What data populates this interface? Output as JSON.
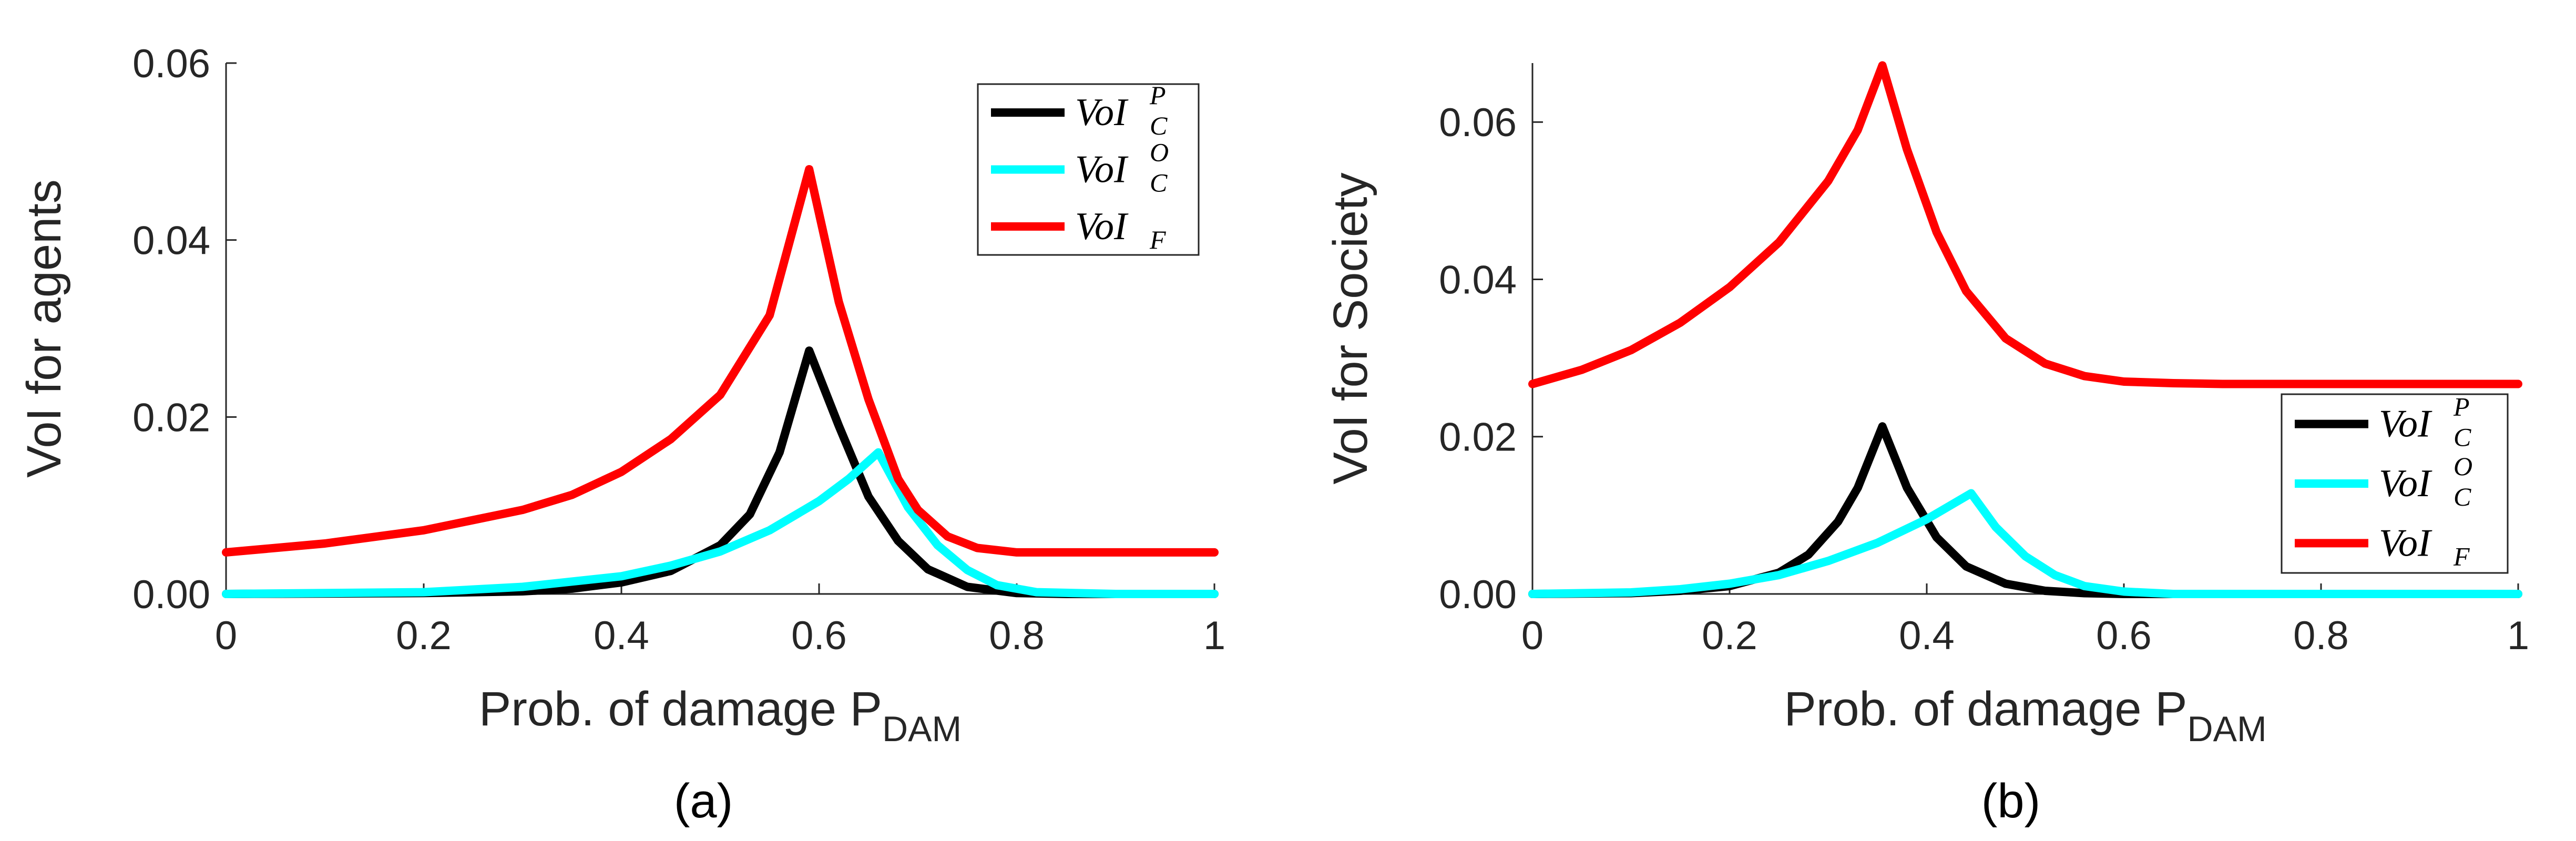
{
  "chart_data": [
    {
      "type": "line",
      "panel_label": "(a)",
      "xlabel": "Prob. of damage P",
      "xlabel_sub": "DAM",
      "ylabel": "VoI for agents",
      "xlim": [
        0,
        1
      ],
      "ylim": [
        0,
        0.06
      ],
      "xticks": [
        "0",
        "0.2",
        "0.4",
        "0.6",
        "0.8",
        "1"
      ],
      "yticks": [
        "0.00",
        "0.02",
        "0.04",
        "0.06"
      ],
      "ytick_values": [
        0,
        0.02,
        0.04,
        0.06
      ],
      "legend_position": "top-right",
      "series": [
        {
          "name": "VoI_C^P",
          "color": "#000000",
          "legend": {
            "main": "VoI",
            "sup": "P",
            "sub": "C"
          },
          "x": [
            0,
            0.2,
            0.3,
            0.35,
            0.4,
            0.45,
            0.5,
            0.53,
            0.56,
            0.59,
            0.62,
            0.65,
            0.68,
            0.71,
            0.75,
            0.8,
            0.85,
            1
          ],
          "y": [
            0,
            0.0001,
            0.0003,
            0.0006,
            0.0013,
            0.0026,
            0.0055,
            0.009,
            0.016,
            0.0275,
            0.019,
            0.011,
            0.006,
            0.0028,
            0.0008,
            0.0001,
            0,
            0
          ]
        },
        {
          "name": "VoI_C^O",
          "color": "#00ffff",
          "legend": {
            "main": "VoI",
            "sup": "O",
            "sub": "C"
          },
          "x": [
            0,
            0.2,
            0.3,
            0.4,
            0.45,
            0.5,
            0.55,
            0.6,
            0.63,
            0.66,
            0.69,
            0.72,
            0.75,
            0.78,
            0.82,
            0.9,
            1
          ],
          "y": [
            0,
            0.0002,
            0.0008,
            0.002,
            0.0032,
            0.0048,
            0.0072,
            0.0105,
            0.013,
            0.016,
            0.0098,
            0.0055,
            0.0027,
            0.001,
            0.0002,
            0,
            0
          ]
        },
        {
          "name": "VoI_F",
          "color": "#ff0000",
          "legend": {
            "main": "VoI",
            "sub": "F"
          },
          "x": [
            0,
            0.1,
            0.2,
            0.3,
            0.35,
            0.4,
            0.45,
            0.5,
            0.55,
            0.59,
            0.62,
            0.65,
            0.68,
            0.7,
            0.73,
            0.76,
            0.8,
            0.85,
            1
          ],
          "y": [
            0.0047,
            0.0057,
            0.0072,
            0.0095,
            0.0112,
            0.0138,
            0.0175,
            0.0225,
            0.0315,
            0.048,
            0.033,
            0.022,
            0.013,
            0.0095,
            0.0065,
            0.0052,
            0.0047,
            0.0047,
            0.0047
          ]
        }
      ]
    },
    {
      "type": "line",
      "panel_label": "(b)",
      "xlabel": "Prob. of damage P",
      "xlabel_sub": "DAM",
      "ylabel": "VoI for Society",
      "xlim": [
        0,
        1
      ],
      "ylim": [
        0,
        0.0675
      ],
      "xticks": [
        "0",
        "0.2",
        "0.4",
        "0.6",
        "0.8",
        "1"
      ],
      "yticks": [
        "0.00",
        "0.02",
        "0.04",
        "0.06"
      ],
      "ytick_values": [
        0,
        0.02,
        0.04,
        0.06
      ],
      "legend_position": "bottom-right",
      "series": [
        {
          "name": "VoI_C^P",
          "color": "#000000",
          "legend": {
            "main": "VoI",
            "sup": "P",
            "sub": "C"
          },
          "x": [
            0,
            0.1,
            0.15,
            0.2,
            0.25,
            0.28,
            0.31,
            0.33,
            0.355,
            0.38,
            0.41,
            0.44,
            0.48,
            0.52,
            0.56,
            0.6,
            1
          ],
          "y": [
            0,
            0.0001,
            0.0004,
            0.001,
            0.0027,
            0.005,
            0.0092,
            0.0135,
            0.0213,
            0.0135,
            0.0072,
            0.0035,
            0.0013,
            0.0004,
            0.0001,
            0,
            0
          ]
        },
        {
          "name": "VoI_C^O",
          "color": "#00ffff",
          "legend": {
            "main": "VoI",
            "sup": "O",
            "sub": "C"
          },
          "x": [
            0,
            0.1,
            0.15,
            0.2,
            0.25,
            0.3,
            0.35,
            0.4,
            0.445,
            0.47,
            0.5,
            0.53,
            0.56,
            0.6,
            0.65,
            1
          ],
          "y": [
            0,
            0.0002,
            0.0006,
            0.0013,
            0.0024,
            0.0042,
            0.0065,
            0.0095,
            0.0128,
            0.0085,
            0.0048,
            0.0024,
            0.001,
            0.0003,
            0,
            0
          ]
        },
        {
          "name": "VoI_F",
          "color": "#ff0000",
          "legend": {
            "main": "VoI",
            "sub": "F"
          },
          "x": [
            0,
            0.05,
            0.1,
            0.15,
            0.2,
            0.25,
            0.3,
            0.33,
            0.355,
            0.38,
            0.41,
            0.44,
            0.48,
            0.52,
            0.56,
            0.6,
            0.65,
            0.7,
            1
          ],
          "y": [
            0.0267,
            0.0285,
            0.031,
            0.0345,
            0.039,
            0.0447,
            0.0525,
            0.059,
            0.0672,
            0.0565,
            0.046,
            0.0385,
            0.0325,
            0.0293,
            0.0277,
            0.027,
            0.0268,
            0.0267,
            0.0267
          ]
        }
      ]
    }
  ]
}
